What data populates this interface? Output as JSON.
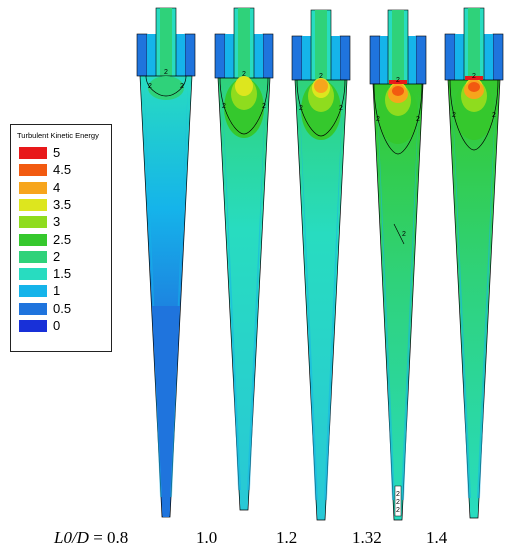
{
  "legend": {
    "title": "Turbulent Kinetic Energy",
    "levels": [
      {
        "label": "5",
        "color": "#e8181a"
      },
      {
        "label": "4.5",
        "color": "#f25a10"
      },
      {
        "label": "4",
        "color": "#f7a51c"
      },
      {
        "label": "3.5",
        "color": "#dde61e"
      },
      {
        "label": "3",
        "color": "#8fdc1e"
      },
      {
        "label": "2.5",
        "color": "#35c82d"
      },
      {
        "label": "2",
        "color": "#2fd27a"
      },
      {
        "label": "1.5",
        "color": "#28dcc0"
      },
      {
        "label": "1",
        "color": "#15b4ea"
      },
      {
        "label": "0.5",
        "color": "#1f74dd"
      },
      {
        "label": "0",
        "color": "#1830d8"
      }
    ]
  },
  "contour_label": "2",
  "panels": [
    {
      "caption_var": "L0/D",
      "caption_eq": " = 0.8",
      "caption": "0.8"
    },
    {
      "caption": "1.0"
    },
    {
      "caption": "1.2"
    },
    {
      "caption": "1.32"
    },
    {
      "caption": "1.4"
    }
  ]
}
